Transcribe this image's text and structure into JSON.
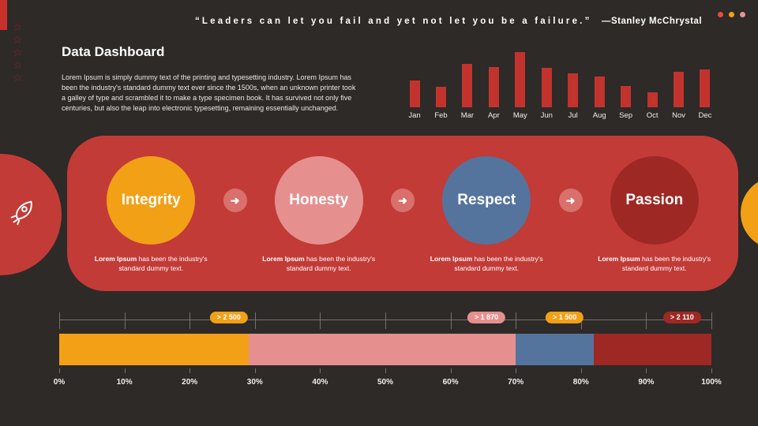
{
  "quote": {
    "text": "“Leaders can let you fail and yet not let you be a failure.”",
    "author": "—Stanley McChrystal"
  },
  "header": {
    "title": "Data Dashboard",
    "body": "Lorem Ipsum is simply dummy text of the printing and typesetting industry. Lorem Ipsum has been the industry's standard dummy text ever since the 1500s, when an unknown printer took a galley of type and scrambled it to make a type specimen book. It has survived not only five centuries, but also the leap into electronic typesetting, remaining essentially unchanged."
  },
  "decor": {
    "corner_bar_color": "#c8302c",
    "stars": [
      "☆",
      "☆",
      "☆",
      "☆",
      "☆"
    ],
    "star_color": "#8a2523",
    "window_dots": [
      "#e74c3c",
      "#f2a016",
      "#e8918f"
    ],
    "left_circle_color": "#c23b37",
    "right_circle_color": "#f2a016",
    "rocket_icon": "rocket-icon"
  },
  "values_banner": {
    "bg": "#c23b37",
    "arrow_glyph": "➜",
    "arrow_color": "#d9706c",
    "items": [
      {
        "label": "Integrity",
        "color": "#f2a016",
        "desc_bold": "Lorem Ipsum",
        "desc_rest": " has been the industry's standard dummy text."
      },
      {
        "label": "Honesty",
        "color": "#e5908f",
        "desc_bold": "Lorem Ipsum",
        "desc_rest": " has been the industry's standard dummy text."
      },
      {
        "label": "Respect",
        "color": "#54749e",
        "desc_bold": "Lorem Ipsum",
        "desc_rest": " has been the industry's standard dummy text."
      },
      {
        "label": "Passion",
        "color": "#9e2823",
        "desc_bold": "Lorem Ipsum",
        "desc_rest": " has been the industry's standard dummy text."
      }
    ]
  },
  "chart_data": [
    {
      "type": "bar",
      "title": "Monthly bars (top-right mini chart)",
      "categories": [
        "Jan",
        "Feb",
        "Mar",
        "Apr",
        "May",
        "Jun",
        "Jul",
        "Aug",
        "Sep",
        "Oct",
        "Nov",
        "Dec"
      ],
      "values": [
        32,
        25,
        52,
        48,
        66,
        47,
        41,
        37,
        26,
        18,
        43,
        45
      ],
      "xlabel": "",
      "ylabel": "",
      "ylim": [
        0,
        70
      ],
      "bar_color": "#c3332e",
      "grid": false,
      "legend": false
    },
    {
      "type": "bar",
      "subtype": "horizontal-stacked",
      "title": "Progress breakdown (bottom bar)",
      "axis_ticks": [
        "0%",
        "10%",
        "20%",
        "30%",
        "40%",
        "50%",
        "60%",
        "70%",
        "80%",
        "90%",
        "100%"
      ],
      "xlim": [
        0,
        100
      ],
      "segments": [
        {
          "name": "Integrity",
          "start": 0,
          "end": 29,
          "color": "#f2a016",
          "badge": "> 2 500",
          "badge_color": "#f2a016",
          "badge_pos": 26
        },
        {
          "name": "Honesty",
          "start": 29,
          "end": 70,
          "color": "#e5908f",
          "badge": "> 1 870",
          "badge_color": "#e5908f",
          "badge_pos": 65.5
        },
        {
          "name": "Respect",
          "start": 70,
          "end": 82,
          "color": "#54749e",
          "badge": "> 1 500",
          "badge_color": "#f2a016",
          "badge_pos": 77.5
        },
        {
          "name": "Passion",
          "start": 82,
          "end": 100,
          "color": "#9e2823",
          "badge": "> 2 110",
          "badge_color": "#9e2823",
          "badge_pos": 95.5
        }
      ]
    }
  ]
}
